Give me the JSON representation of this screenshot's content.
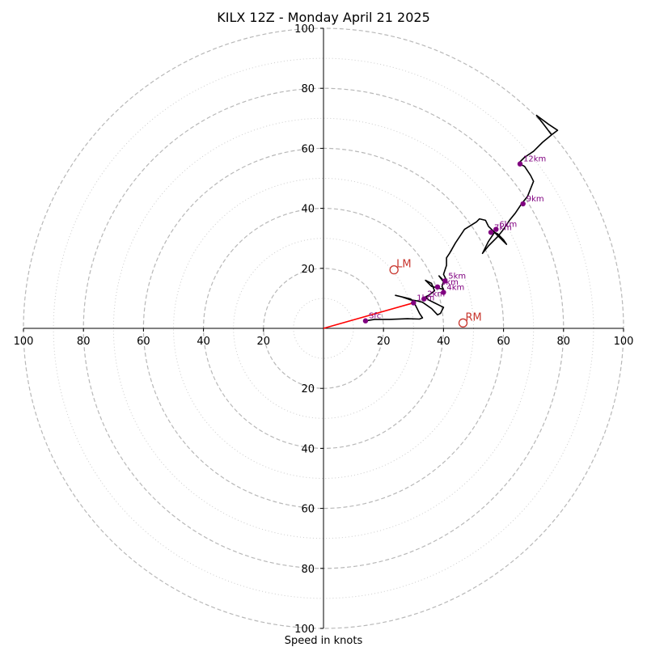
{
  "chart_data": {
    "type": "hodograph",
    "title": "KILX 12Z - Monday April 21 2025",
    "xlabel": "Speed in knots",
    "units": "knots",
    "xlim": [
      -100,
      100
    ],
    "ylim": [
      -100,
      100
    ],
    "major_ring_step": 20,
    "minor_ring_offset": 10,
    "ticks": [
      -100,
      -80,
      -60,
      -40,
      -20,
      20,
      40,
      60,
      80,
      100
    ],
    "tick_labels": [
      "100",
      "80",
      "60",
      "40",
      "20",
      "20",
      "40",
      "60",
      "80",
      "100"
    ],
    "grid": true,
    "hodograph": {
      "color": "#000000",
      "points": [
        [
          14,
          2.5
        ],
        [
          17,
          3
        ],
        [
          22,
          3
        ],
        [
          28,
          3.2
        ],
        [
          32,
          3.1
        ],
        [
          33,
          3.5
        ],
        [
          32,
          5
        ],
        [
          31,
          7
        ],
        [
          30,
          9
        ],
        [
          29,
          9.8
        ],
        [
          24,
          11
        ],
        [
          26,
          10.5
        ],
        [
          29,
          9.5
        ],
        [
          31,
          9.2
        ],
        [
          33,
          8.7
        ],
        [
          36,
          6.6
        ],
        [
          38,
          4.5
        ],
        [
          39,
          5
        ],
        [
          40,
          7
        ],
        [
          39,
          7.5
        ],
        [
          37,
          8.5
        ],
        [
          35,
          9.5
        ],
        [
          34,
          10.5
        ],
        [
          35,
          11
        ],
        [
          37,
          12.5
        ],
        [
          36,
          15
        ],
        [
          34,
          16
        ],
        [
          36,
          14
        ],
        [
          38,
          13.5
        ],
        [
          40,
          13
        ],
        [
          39.5,
          14
        ],
        [
          40,
          15.5
        ],
        [
          38.5,
          17.5
        ],
        [
          39.5,
          16.5
        ],
        [
          40,
          16
        ],
        [
          41,
          15.5
        ],
        [
          41,
          16
        ],
        [
          40,
          18
        ],
        [
          41,
          21
        ],
        [
          41,
          23.5
        ],
        [
          42,
          25
        ],
        [
          44,
          28.5
        ],
        [
          47,
          33
        ],
        [
          51,
          35.5
        ],
        [
          52,
          36.5
        ],
        [
          54,
          36
        ],
        [
          55,
          34
        ],
        [
          56,
          33
        ],
        [
          58,
          31
        ],
        [
          60,
          29
        ],
        [
          61,
          28
        ],
        [
          60,
          29.5
        ],
        [
          58,
          31.5
        ],
        [
          57,
          32
        ],
        [
          55,
          29
        ],
        [
          53,
          25
        ],
        [
          55,
          27.5
        ],
        [
          58,
          30.5
        ],
        [
          60,
          33
        ],
        [
          62,
          36
        ],
        [
          64,
          38.5
        ],
        [
          66,
          41.5
        ],
        [
          68,
          44
        ],
        [
          70,
          49
        ],
        [
          69,
          51
        ],
        [
          67,
          54
        ],
        [
          65,
          55
        ],
        [
          67,
          57
        ],
        [
          70,
          59
        ],
        [
          73,
          62
        ],
        [
          76,
          64.5
        ],
        [
          78,
          66
        ],
        [
          75,
          68
        ],
        [
          71,
          71
        ],
        [
          73,
          68.5
        ],
        [
          76,
          64.5
        ]
      ]
    },
    "height_markers": [
      {
        "label": "Sfc",
        "u": 14,
        "v": 2.5
      },
      {
        "label": "1km",
        "u": 30,
        "v": 8.5
      },
      {
        "label": "2km",
        "u": 33.5,
        "v": 9.8
      },
      {
        "label": "3km",
        "u": 38,
        "v": 13.8
      },
      {
        "label": "4km",
        "u": 40,
        "v": 12
      },
      {
        "label": "5km",
        "u": 40.5,
        "v": 15.8
      },
      {
        "label": "6km",
        "u": 57.5,
        "v": 33
      },
      {
        "label": "7km",
        "u": 55.8,
        "v": 32
      },
      {
        "label": "9km",
        "u": 66.5,
        "v": 41.5
      },
      {
        "label": "12km",
        "u": 65.5,
        "v": 54.8
      }
    ],
    "marker_color": "#800080",
    "storm_motions": [
      {
        "label": "LM",
        "u": 23.5,
        "v": 19.5
      },
      {
        "label": "RM",
        "u": 46.5,
        "v": 1.8
      }
    ],
    "storm_motion_color": "#c8352d",
    "shear_vector": {
      "from": [
        0,
        0
      ],
      "to": [
        30,
        8.5
      ],
      "color": "#ff0000"
    }
  }
}
